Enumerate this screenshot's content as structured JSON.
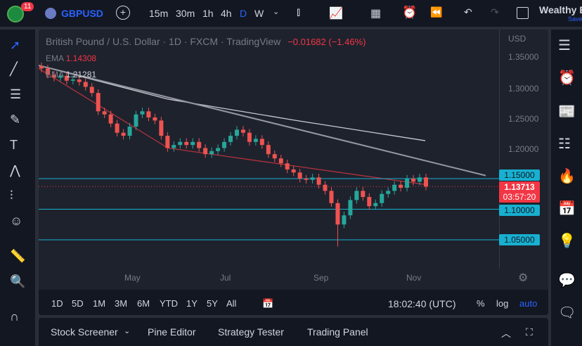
{
  "header": {
    "badge_count": "11",
    "symbol": "GBPUSD",
    "intervals": [
      "15m",
      "30m",
      "1h",
      "4h",
      "D",
      "W"
    ],
    "active_interval": "D",
    "layout_name": "Wealthy E",
    "save_label": "Save"
  },
  "legend": {
    "title": "British Pound / U.S. Dollar · 1D · FXCM · TradingView",
    "change": "−0.01682 (−1.46%)",
    "ema1_label": "EMA",
    "ema1_value": "1.14308",
    "ema2_label": "EMA",
    "ema2_value": "1.21281"
  },
  "price_scale": {
    "currency": "USD",
    "ticks": [
      "1.35000",
      "1.30000",
      "1.25000",
      "1.20000"
    ],
    "levels": [
      "1.15000",
      "1.10000",
      "1.05000"
    ],
    "current_price": "1.13713",
    "countdown": "03:57:20"
  },
  "time_axis": [
    "May",
    "Jul",
    "Sep",
    "Nov"
  ],
  "range_bar": {
    "ranges": [
      "1D",
      "5D",
      "1M",
      "3M",
      "6M",
      "YTD",
      "1Y",
      "5Y",
      "All"
    ],
    "clock": "18:02:40 (UTC)",
    "percent": "%",
    "log": "log",
    "auto": "auto"
  },
  "bottom_tabs": [
    "Stock Screener",
    "Pine Editor",
    "Strategy Tester",
    "Trading Panel"
  ],
  "colors": {
    "up": "#26a69a",
    "down": "#ef5350",
    "level": "#17b0d0",
    "current": "#f23645",
    "ema_fast": "#b2323c",
    "ema_slow": "#c9cbd1",
    "trendline": "#9598a1"
  },
  "chart_data": {
    "type": "candlestick",
    "approx_closes": [
      1.33,
      1.32,
      1.315,
      1.318,
      1.31,
      1.312,
      1.308,
      1.3,
      1.29,
      1.26,
      1.255,
      1.24,
      1.225,
      1.22,
      1.235,
      1.255,
      1.26,
      1.25,
      1.245,
      1.22,
      1.2,
      1.205,
      1.21,
      1.205,
      1.21,
      1.2,
      1.19,
      1.195,
      1.2,
      1.21,
      1.22,
      1.23,
      1.225,
      1.21,
      1.215,
      1.205,
      1.19,
      1.183,
      1.175,
      1.165,
      1.16,
      1.15,
      1.148,
      1.152,
      1.14,
      1.13,
      1.11,
      1.075,
      1.09,
      1.115,
      1.13,
      1.12,
      1.105,
      1.11,
      1.125,
      1.13,
      1.14,
      1.135,
      1.15,
      1.145,
      1.152,
      1.137
    ],
    "ema_fast": [
      1.33,
      1.2,
      1.17,
      1.14
    ],
    "ema_slow": [
      1.335,
      1.28,
      1.245,
      1.212
    ]
  }
}
